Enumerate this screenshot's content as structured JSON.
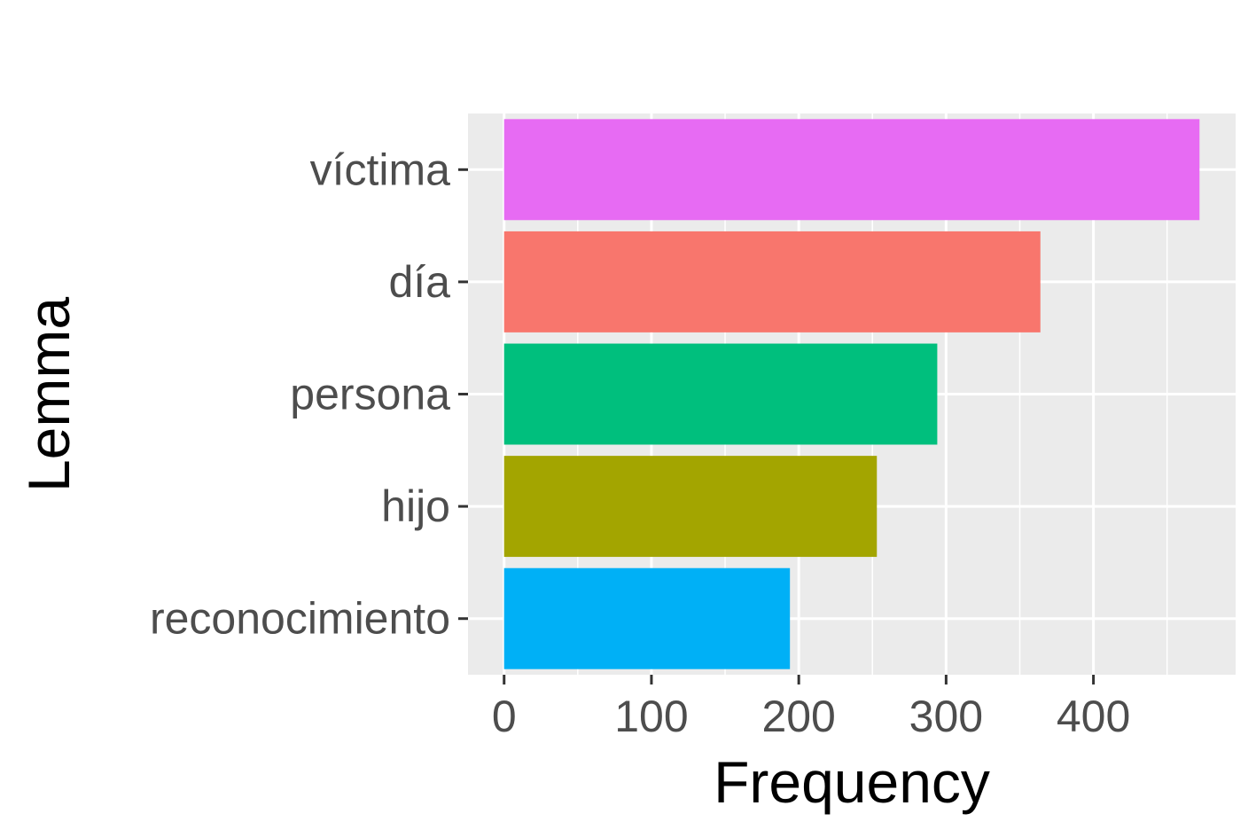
{
  "chart_data": {
    "type": "bar",
    "orientation": "horizontal",
    "xlabel": "Frequency",
    "ylabel": "Lemma",
    "categories": [
      "víctima",
      "día",
      "persona",
      "hijo",
      "reconocimiento"
    ],
    "values": [
      472,
      364,
      294,
      253,
      194
    ],
    "colors": [
      "#E76BF3",
      "#F8766D",
      "#00BF7D",
      "#A3A500",
      "#00B0F6"
    ],
    "xlim": [
      -24.5,
      496.5
    ],
    "x_ticks": [
      0,
      100,
      200,
      300,
      400
    ],
    "x_tick_labels": [
      "0",
      "100",
      "200",
      "300",
      "400"
    ],
    "panel_background": "#EBEBEB",
    "gridline_color": "#FFFFFF",
    "grid": true,
    "legend": "none"
  }
}
